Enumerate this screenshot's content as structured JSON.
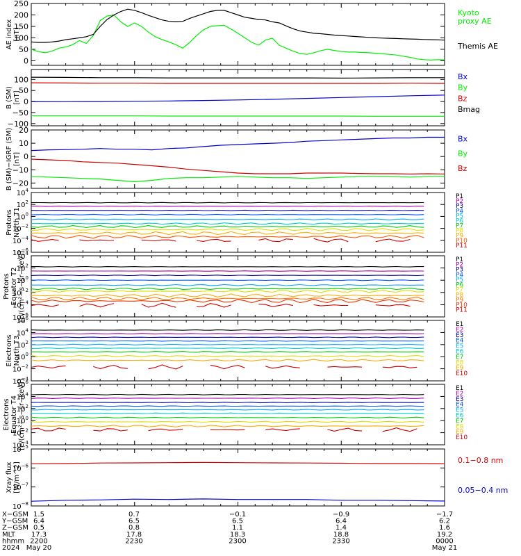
{
  "chart_data": [
    {
      "type": "line",
      "ylabel": "AE index\n[nT]",
      "ylim": [
        -20,
        250
      ],
      "yticks": [
        {
          "v": 250,
          "label": "250"
        },
        {
          "v": 200,
          "label": "200"
        },
        {
          "v": 150,
          "label": "150"
        },
        {
          "v": 100,
          "label": "100"
        },
        {
          "v": 50,
          "label": "50"
        },
        {
          "v": 0,
          "label": "0"
        }
      ],
      "x": [
        0,
        2,
        4,
        6,
        8,
        10,
        12,
        14,
        16,
        18,
        20,
        22,
        24,
        26,
        28,
        30,
        32,
        34,
        36,
        38,
        40,
        42,
        44,
        46,
        48,
        50,
        52,
        54,
        56,
        58,
        60,
        62,
        64,
        66,
        68,
        70,
        72,
        74,
        76,
        78,
        80,
        82,
        84,
        86,
        88,
        90,
        92,
        94,
        96,
        98,
        100,
        102,
        104,
        106,
        108,
        110,
        112,
        114,
        116,
        118,
        120
      ],
      "series": [
        {
          "name": "Kyoto\nproxy AE",
          "color": "#00ee00",
          "values": [
            50,
            40,
            35,
            42,
            55,
            60,
            70,
            88,
            76,
            110,
            175,
            195,
            200,
            170,
            150,
            165,
            150,
            125,
            105,
            92,
            82,
            70,
            55,
            80,
            110,
            135,
            150,
            153,
            155,
            138,
            120,
            100,
            80,
            68,
            90,
            98,
            68,
            55,
            42,
            32,
            28,
            35,
            44,
            50,
            45,
            40,
            38,
            38,
            36,
            35,
            33,
            30,
            28,
            25,
            20,
            15,
            8,
            5,
            3,
            5,
            4
          ]
        },
        {
          "name": "Themis AE",
          "color": "#000000",
          "values": [
            82,
            80,
            80,
            82,
            86,
            92,
            96,
            100,
            105,
            115,
            150,
            180,
            200,
            215,
            225,
            220,
            210,
            198,
            188,
            178,
            172,
            170,
            172,
            185,
            195,
            205,
            215,
            220,
            220,
            210,
            200,
            190,
            185,
            180,
            178,
            170,
            165,
            152,
            140,
            130,
            125,
            120,
            118,
            115,
            112,
            110,
            108,
            106,
            104,
            102,
            100,
            99,
            98,
            97,
            96,
            95,
            94,
            93,
            92,
            91,
            90
          ]
        }
      ]
    },
    {
      "type": "line",
      "ylabel": "B (SM)\n[nT]",
      "ylim": [
        -110,
        145
      ],
      "yticks": [
        {
          "v": 100,
          "label": "100"
        },
        {
          "v": 50,
          "label": "50"
        },
        {
          "v": 0,
          "label": "0"
        },
        {
          "v": -50,
          "label": "−50"
        },
        {
          "v": -100,
          "label": "−100"
        }
      ],
      "x": [
        0,
        10,
        20,
        30,
        40,
        50,
        60,
        70,
        80,
        90,
        100,
        110,
        120
      ],
      "series": [
        {
          "name": "Bx",
          "color": "#0000cc",
          "values": [
            -1,
            -0.5,
            0,
            1,
            2.5,
            4.5,
            7,
            10,
            14,
            18,
            22,
            26,
            29
          ]
        },
        {
          "name": "By",
          "color": "#00ee00",
          "values": [
            -65,
            -65,
            -65,
            -65,
            -66,
            -66,
            -66,
            -66,
            -66,
            -66,
            -67,
            -67,
            -67
          ]
        },
        {
          "name": "Bz",
          "color": "#cc0000",
          "values": [
            85,
            84,
            83,
            83,
            82,
            82,
            82,
            82,
            82,
            82,
            82,
            83,
            82
          ]
        },
        {
          "name": "Bmag",
          "color": "#000000",
          "values": [
            110,
            109,
            108,
            108,
            107,
            107,
            107,
            107,
            107,
            106,
            107,
            108,
            108
          ]
        }
      ]
    },
    {
      "type": "line",
      "ylabel": "B (SM)−IGRF (SM)\n[nT]",
      "ylim": [
        -24,
        20
      ],
      "yticks": [
        {
          "v": 20,
          "label": "20"
        },
        {
          "v": 10,
          "label": "10"
        },
        {
          "v": 0,
          "label": "0"
        },
        {
          "v": -10,
          "label": "−10"
        },
        {
          "v": -20,
          "label": "−20"
        }
      ],
      "x": [
        0,
        5,
        10,
        15,
        20,
        25,
        30,
        35,
        40,
        45,
        50,
        55,
        60,
        65,
        70,
        75,
        80,
        85,
        90,
        95,
        100,
        105,
        110,
        115,
        120
      ],
      "series": [
        {
          "name": "Bx",
          "color": "#0000cc",
          "values": [
            4.5,
            5,
            5.2,
            5.5,
            6,
            5.5,
            5.5,
            5,
            6,
            6.5,
            7.5,
            8.5,
            9,
            9.5,
            10,
            10.5,
            11.5,
            12,
            12.5,
            13,
            13.5,
            14,
            14,
            14.5,
            14.5
          ]
        },
        {
          "name": "By",
          "color": "#00ee00",
          "values": [
            -15,
            -15.5,
            -16,
            -16.5,
            -17,
            -18,
            -19,
            -18,
            -16.5,
            -16,
            -16,
            -15.5,
            -15,
            -15.5,
            -16,
            -16,
            -16.5,
            -16,
            -15.5,
            -15,
            -15,
            -15,
            -15.5,
            -15,
            -15
          ]
        },
        {
          "name": "Bz",
          "color": "#cc0000",
          "values": [
            -2,
            -2.5,
            -3,
            -4,
            -4.5,
            -5,
            -6,
            -7,
            -8,
            -9.5,
            -10.5,
            -11.5,
            -12.5,
            -13,
            -13,
            -13,
            -12.5,
            -12.5,
            -12.5,
            -12.8,
            -13,
            -13,
            -13.2,
            -13,
            -13.2
          ]
        }
      ]
    },
    {
      "type": "line",
      "log": true,
      "ylabel": "Protons\nNorth T1",
      "ylim": [
        -6,
        4
      ],
      "yticks": [
        {
          "v": 4,
          "b": "10",
          "e": "4"
        },
        {
          "v": 2,
          "b": "10",
          "e": "2"
        },
        {
          "v": 0,
          "b": "10",
          "e": "0"
        },
        {
          "v": -2,
          "b": "10",
          "e": "−2"
        },
        {
          "v": -4,
          "b": "10",
          "e": "−4"
        },
        {
          "v": -6,
          "b": "10",
          "e": "−6"
        }
      ],
      "series": [
        {
          "name": "P1",
          "color": "#000000",
          "level": 2.3,
          "amp": 0.04
        },
        {
          "name": "P2",
          "color": "#aa00aa",
          "level": 1.7,
          "amp": 0.04
        },
        {
          "name": "P3",
          "color": "#000099",
          "level": 1.0,
          "amp": 0.05
        },
        {
          "name": "P4",
          "color": "#0055ff",
          "level": 0.3,
          "amp": 0.06
        },
        {
          "name": "P5",
          "color": "#00aaff",
          "level": -0.5,
          "amp": 0.08
        },
        {
          "name": "P6",
          "color": "#00cccc",
          "level": -1.2,
          "amp": 0.12
        },
        {
          "name": "P7",
          "color": "#00cc00",
          "level": -1.7,
          "amp": 0.18
        },
        {
          "name": "P8",
          "color": "#dddd00",
          "level": -2.2,
          "amp": 0.2
        },
        {
          "name": "P9",
          "color": "#ffaa00",
          "level": -2.8,
          "amp": 0.25
        },
        {
          "name": "P10",
          "color": "#ff5500",
          "level": -3.4,
          "amp": 0.25
        },
        {
          "name": "P11",
          "color": "#cc0000",
          "level": -4.0,
          "amp": 0.3,
          "gappy": true
        }
      ]
    },
    {
      "type": "line",
      "log": true,
      "ylabel": "Protons\nEquator T2\n[p/(cm²−s−sr−keV)]",
      "ylim": [
        -6,
        4
      ],
      "yticks": [
        {
          "v": 4,
          "b": "10",
          "e": "4"
        },
        {
          "v": 2,
          "b": "10",
          "e": "2"
        },
        {
          "v": 0,
          "b": "10",
          "e": "0"
        },
        {
          "v": -2,
          "b": "10",
          "e": "−2"
        },
        {
          "v": -4,
          "b": "10",
          "e": "−4"
        },
        {
          "v": -6,
          "b": "10",
          "e": "−6"
        }
      ],
      "series": [
        {
          "name": "P1",
          "color": "#000000",
          "level": 2.2,
          "amp": 0.04
        },
        {
          "name": "P2",
          "color": "#aa00aa",
          "level": 1.5,
          "amp": 0.04
        },
        {
          "name": "P3",
          "color": "#000099",
          "level": 0.8,
          "amp": 0.05
        },
        {
          "name": "P4",
          "color": "#0055ff",
          "level": 0.0,
          "amp": 0.06
        },
        {
          "name": "P5",
          "color": "#00aaff",
          "level": -0.8,
          "amp": 0.1
        },
        {
          "name": "P6",
          "color": "#00cc00",
          "level": -1.4,
          "amp": 0.15
        },
        {
          "name": "P7",
          "color": "#dddd00",
          "level": -1.8,
          "amp": 0.2
        },
        {
          "name": "P8",
          "color": "#ffaa00",
          "level": -2.5,
          "amp": 0.25
        },
        {
          "name": "P9",
          "color": "#ff7700",
          "level": -3.0,
          "amp": 0.25
        },
        {
          "name": "P10",
          "color": "#ee3300",
          "level": -3.4,
          "amp": 0.3
        },
        {
          "name": "P11",
          "color": "#cc0000",
          "level": -4.1,
          "amp": 0.35,
          "gappy": true
        }
      ]
    },
    {
      "type": "line",
      "log": true,
      "ylabel": "Electrons\nNorth T3",
      "ylim": [
        -4,
        6
      ],
      "yticks": [
        {
          "v": 6,
          "b": "10",
          "e": "6"
        },
        {
          "v": 4,
          "b": "10",
          "e": "4"
        },
        {
          "v": 2,
          "b": "10",
          "e": "2"
        },
        {
          "v": 0,
          "b": "10",
          "e": "0"
        },
        {
          "v": -2,
          "b": "10",
          "e": "−2"
        },
        {
          "v": -4,
          "b": "10",
          "e": "−4"
        }
      ],
      "series": [
        {
          "name": "E1",
          "color": "#000000",
          "level": 4.4,
          "amp": 0.05
        },
        {
          "name": "E2",
          "color": "#aa00aa",
          "level": 3.8,
          "amp": 0.05
        },
        {
          "name": "E3",
          "color": "#000099",
          "level": 3.2,
          "amp": 0.05
        },
        {
          "name": "E4",
          "color": "#0055ff",
          "level": 2.6,
          "amp": 0.05
        },
        {
          "name": "E5",
          "color": "#00aaff",
          "level": 2.0,
          "amp": 0.06
        },
        {
          "name": "E6",
          "color": "#00cccc",
          "level": 1.4,
          "amp": 0.07
        },
        {
          "name": "E7",
          "color": "#00cc00",
          "level": 0.8,
          "amp": 0.08
        },
        {
          "name": "E8",
          "color": "#dddd00",
          "level": 0.1,
          "amp": 0.1
        },
        {
          "name": "E9",
          "color": "#ffaa00",
          "level": -0.6,
          "amp": 0.15
        },
        {
          "name": "E10",
          "color": "#cc0000",
          "level": -1.7,
          "amp": 0.35,
          "gappy": true
        }
      ]
    },
    {
      "type": "line",
      "log": true,
      "ylabel": "Electrons\nEquator T4\n[e/(cm²−s−sr−keV)]",
      "ylim": [
        -4,
        6
      ],
      "yticks": [
        {
          "v": 6,
          "b": "10",
          "e": "6"
        },
        {
          "v": 4,
          "b": "10",
          "e": "4"
        },
        {
          "v": 2,
          "b": "10",
          "e": "2"
        },
        {
          "v": 0,
          "b": "10",
          "e": "0"
        },
        {
          "v": -2,
          "b": "10",
          "e": "−2"
        },
        {
          "v": -4,
          "b": "10",
          "e": "−4"
        }
      ],
      "series": [
        {
          "name": "E1",
          "color": "#000000",
          "level": 4.3,
          "amp": 0.05
        },
        {
          "name": "E2",
          "color": "#aa00aa",
          "level": 3.7,
          "amp": 0.05
        },
        {
          "name": "E3",
          "color": "#000099",
          "level": 3.0,
          "amp": 0.05
        },
        {
          "name": "E4",
          "color": "#0055ff",
          "level": 2.4,
          "amp": 0.05
        },
        {
          "name": "E5",
          "color": "#00aaff",
          "level": 1.8,
          "amp": 0.06
        },
        {
          "name": "E6",
          "color": "#00cccc",
          "level": 1.2,
          "amp": 0.07
        },
        {
          "name": "E7",
          "color": "#00cc00",
          "level": 0.5,
          "amp": 0.08
        },
        {
          "name": "E8",
          "color": "#dddd00",
          "level": -0.2,
          "amp": 0.1
        },
        {
          "name": "E9",
          "color": "#ffaa00",
          "level": -0.9,
          "amp": 0.15
        },
        {
          "name": "E10",
          "color": "#cc0000",
          "level": -1.5,
          "amp": 0.3,
          "gappy": true
        }
      ]
    },
    {
      "type": "line",
      "log": true,
      "ylabel": "Xray flux\n[W/m^2]",
      "ylim": [
        -8,
        -5
      ],
      "yticks": [
        {
          "v": -5,
          "b": "10",
          "e": "−5"
        },
        {
          "v": -6,
          "b": "10",
          "e": "−6"
        },
        {
          "v": -7,
          "b": "10",
          "e": "−7"
        },
        {
          "v": -8,
          "b": "10",
          "e": "−8"
        }
      ],
      "x": [
        0,
        10,
        20,
        30,
        40,
        50,
        60,
        70,
        80,
        90,
        100,
        110,
        120
      ],
      "series": [
        {
          "name": "0.1−0.8 nm",
          "color": "#cc0000",
          "values": [
            -5.78,
            -5.77,
            -5.74,
            -5.73,
            -5.72,
            -5.71,
            -5.72,
            -5.73,
            -5.74,
            -5.75,
            -5.77,
            -5.77,
            -5.78
          ]
        },
        {
          "name": "0.05−0.4 nm",
          "color": "#0000cc",
          "values": [
            -7.75,
            -7.7,
            -7.68,
            -7.64,
            -7.66,
            -7.63,
            -7.66,
            -7.66,
            -7.66,
            -7.7,
            -7.7,
            -7.72,
            -7.74
          ]
        }
      ]
    }
  ],
  "orbit_table": {
    "row_labels": [
      "X−GSM",
      "Y−GSM",
      "Z−GSM",
      "MLT",
      "hhmm",
      "2024"
    ],
    "columns": [
      [
        "1.5",
        "6.4",
        "0.5",
        "17.3",
        "2200",
        "May 20"
      ],
      [
        "0.7",
        "6.5",
        "0.8",
        "17.8",
        "2230",
        ""
      ],
      [
        "−0.1",
        "6.5",
        "1.1",
        "18.3",
        "2300",
        ""
      ],
      [
        "−0.9",
        "6.4",
        "1.4",
        "18.8",
        "2330",
        ""
      ],
      [
        "−1.7",
        "6.2",
        "1.6",
        "19.2",
        "0000",
        "May 21"
      ]
    ]
  }
}
